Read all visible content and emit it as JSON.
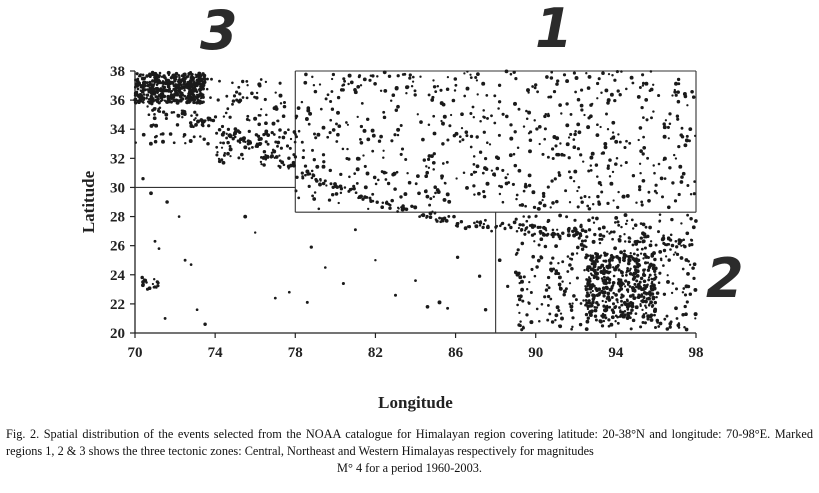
{
  "chart_data": {
    "type": "scatter",
    "title": "",
    "xlabel": "Longitude",
    "ylabel": "Latitude",
    "xlim": [
      70,
      98
    ],
    "ylim": [
      20,
      38
    ],
    "xticks": [
      "70",
      "74",
      "78",
      "82",
      "86",
      "90",
      "94",
      "98"
    ],
    "yticks": [
      "20",
      "22",
      "24",
      "26",
      "28",
      "30",
      "32",
      "34",
      "36",
      "38"
    ],
    "grid": false,
    "marker_color": "#1a1a1a",
    "region_labels": [
      {
        "label": "3",
        "region": "Western Himalaya (70-78E, 30-38N)"
      },
      {
        "label": "1",
        "region": "Central Himalaya (78-98E, 28.3-38N)"
      },
      {
        "label": "2",
        "region": "Northeast Himalaya (88-98E, 20-28.3N)"
      }
    ],
    "region_boundaries": {
      "region3": {
        "lon": [
          70,
          78
        ],
        "lat": [
          30,
          38
        ]
      },
      "region1": {
        "lon": [
          78,
          98
        ],
        "lat": [
          28.3,
          38
        ]
      },
      "region2": {
        "lon": [
          88,
          98
        ],
        "lat": [
          20,
          28.3
        ]
      }
    },
    "point_clusters": [
      {
        "lon": [
          70.0,
          73.5
        ],
        "lat": [
          35.8,
          37.9
        ],
        "n": 420
      },
      {
        "lon": [
          70.0,
          77.5
        ],
        "lat": [
          33.0,
          37.5
        ],
        "n": 160
      },
      {
        "lon": [
          74.0,
          78.5
        ],
        "lat": [
          31.5,
          34.0
        ],
        "n": 70
      },
      {
        "lon": [
          78.0,
          98.0
        ],
        "lat": [
          28.5,
          38.0
        ],
        "n": 620
      },
      {
        "lon": [
          89.0,
          98.0
        ],
        "lat": [
          20.2,
          28.2
        ],
        "n": 360
      },
      {
        "lon": [
          92.5,
          96.0
        ],
        "lat": [
          21.0,
          25.5
        ],
        "n": 380
      },
      {
        "lon": [
          70.2,
          71.2
        ],
        "lat": [
          23.0,
          24.0
        ],
        "n": 20
      }
    ],
    "arc_points": [
      [
        70.8,
        35.5
      ],
      [
        72.0,
        35.0
      ],
      [
        73.5,
        34.5
      ],
      [
        74.8,
        33.8
      ],
      [
        75.8,
        33.0
      ],
      [
        76.8,
        32.2
      ],
      [
        77.6,
        31.6
      ],
      [
        78.5,
        30.9
      ],
      [
        79.5,
        30.3
      ],
      [
        80.5,
        29.8
      ],
      [
        81.5,
        29.3
      ],
      [
        82.5,
        28.8
      ],
      [
        83.5,
        28.5
      ],
      [
        84.5,
        28.2
      ],
      [
        85.5,
        27.9
      ],
      [
        86.5,
        27.6
      ],
      [
        87.5,
        27.5
      ],
      [
        88.5,
        27.4
      ],
      [
        89.5,
        27.2
      ],
      [
        90.5,
        27.0
      ],
      [
        91.5,
        26.9
      ],
      [
        92.5,
        26.8
      ],
      [
        93.5,
        26.7
      ],
      [
        94.5,
        26.5
      ],
      [
        95.5,
        26.4
      ],
      [
        96.5,
        26.3
      ],
      [
        97.5,
        26.2
      ]
    ],
    "sparse_points": [
      [
        71.0,
        26.3
      ],
      [
        71.2,
        25.8
      ],
      [
        72.2,
        28.0
      ],
      [
        72.5,
        25.0
      ],
      [
        72.8,
        24.7
      ],
      [
        73.1,
        21.6
      ],
      [
        73.5,
        20.6
      ],
      [
        71.5,
        21.0
      ],
      [
        75.5,
        28.0
      ],
      [
        76.0,
        26.9
      ],
      [
        77.0,
        22.4
      ],
      [
        77.7,
        22.8
      ],
      [
        78.6,
        22.1
      ],
      [
        78.8,
        25.9
      ],
      [
        79.5,
        24.5
      ],
      [
        80.4,
        23.4
      ],
      [
        81.0,
        27.1
      ],
      [
        82.0,
        25.0
      ],
      [
        83.0,
        22.6
      ],
      [
        84.0,
        23.6
      ],
      [
        84.6,
        21.8
      ],
      [
        85.2,
        22.1
      ],
      [
        85.6,
        21.7
      ],
      [
        86.1,
        25.2
      ],
      [
        86.5,
        27.2
      ],
      [
        87.2,
        23.9
      ],
      [
        87.5,
        21.6
      ],
      [
        87.8,
        27.0
      ],
      [
        88.2,
        25.0
      ],
      [
        88.6,
        23.2
      ],
      [
        89.2,
        22.3
      ],
      [
        70.4,
        30.6
      ],
      [
        70.8,
        29.6
      ],
      [
        71.6,
        29.0
      ]
    ]
  },
  "labels": {
    "region_1": "1",
    "region_2": "2",
    "region_3": "3"
  },
  "caption": {
    "line_main": "Fig. 2. Spatial distribution of the events selected from the NOAA catalogue for Himalayan region covering latitude: 20-38°N and longitude: 70-98°E. Marked regions 1, 2 & 3 shows the three tectonic zones: Central, Northeast and Western Himalayas respectively for magnitudes",
    "line_last": "M° 4 for a period 1960-2003."
  }
}
